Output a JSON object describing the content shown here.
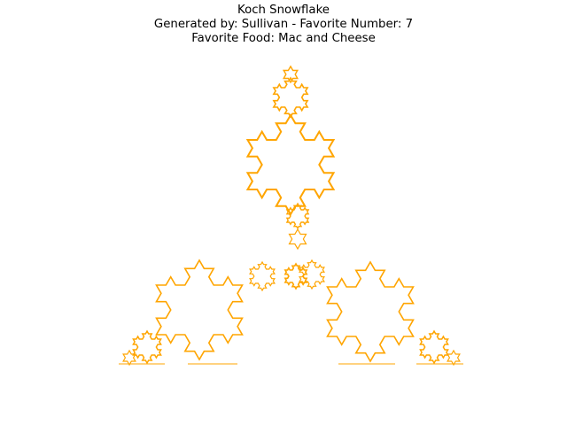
{
  "figure": {
    "title_lines": [
      "Koch Snowflake",
      "Generated by: Sullivan - Favorite Number: 7",
      "Favorite Food: Mac and Cheese"
    ],
    "stroke_color": "#FFA500",
    "background_color": "#FFFFFF",
    "axes_visible": false,
    "shape": "Koch snowflake variant: three branching lobes (top, lower-left, lower-right) with jagged orange outline",
    "lobes": [
      "top",
      "lower-left",
      "lower-right"
    ]
  }
}
